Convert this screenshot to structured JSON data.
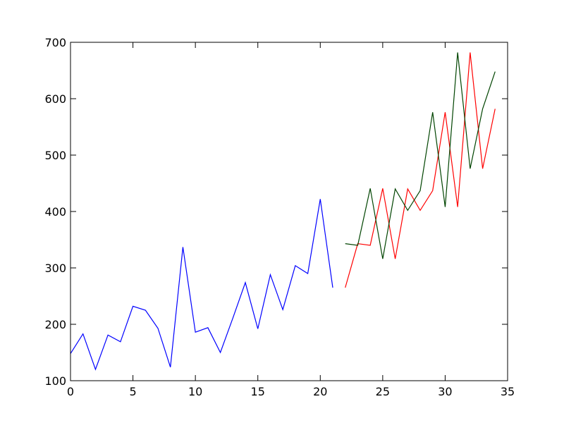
{
  "chart_data": {
    "type": "line",
    "title": "",
    "xlabel": "",
    "ylabel": "",
    "xlim": [
      0,
      35
    ],
    "ylim": [
      100,
      700
    ],
    "xticks": [
      0,
      5,
      10,
      15,
      20,
      25,
      30,
      35
    ],
    "yticks": [
      100,
      200,
      300,
      400,
      500,
      600,
      700
    ],
    "grid": false,
    "legend": "none",
    "series": [
      {
        "color": "#0000ff",
        "x": [
          0,
          1,
          2,
          3,
          4,
          5,
          6,
          7,
          8,
          9,
          10,
          11,
          12,
          13,
          14,
          15,
          16,
          17,
          18,
          19,
          20,
          21
        ],
        "y": [
          148,
          183,
          120,
          181,
          169,
          232,
          225,
          193,
          124,
          337,
          186,
          194,
          150,
          211,
          274,
          192,
          288,
          226,
          304,
          290,
          422,
          265
        ]
      },
      {
        "color": "#ff0000",
        "x": [
          22,
          23,
          24,
          25,
          26,
          27,
          28,
          29,
          30,
          31,
          32,
          33,
          34
        ],
        "y": [
          265,
          343,
          340,
          441,
          316,
          440,
          402,
          437,
          576,
          408,
          682,
          476,
          582
        ]
      },
      {
        "color": "#004400",
        "x": [
          22,
          23,
          24,
          25,
          26,
          27,
          28,
          29,
          30,
          31,
          32,
          33,
          34
        ],
        "y": [
          343,
          340,
          441,
          316,
          440,
          402,
          437,
          576,
          408,
          682,
          476,
          582,
          648
        ]
      }
    ]
  }
}
